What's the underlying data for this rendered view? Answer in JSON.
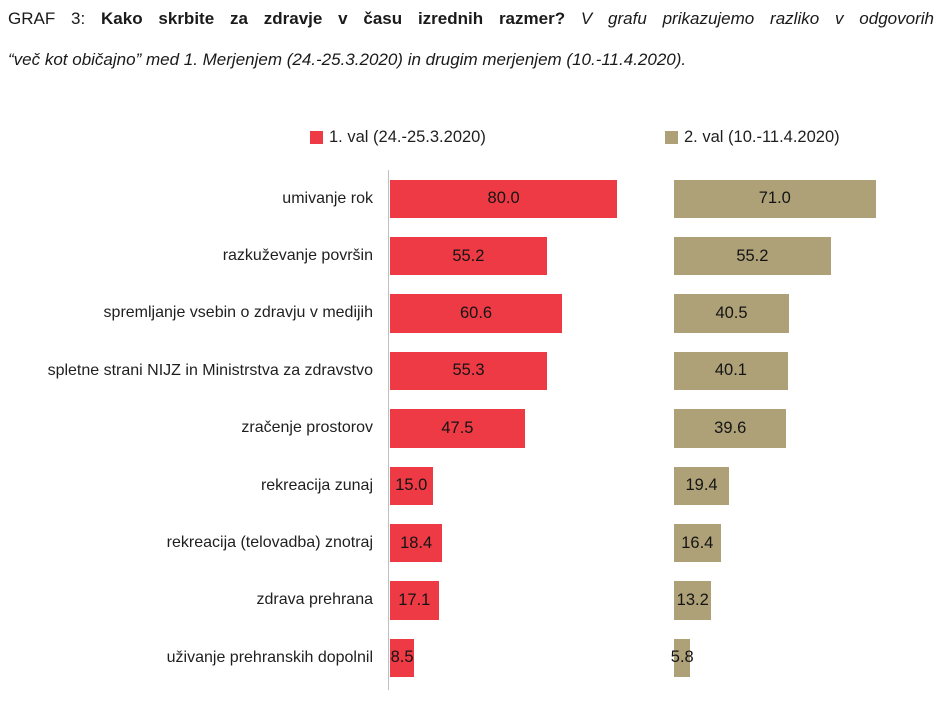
{
  "title": {
    "prefix": "GRAF 3: ",
    "question": "Kako skrbite za zdravje v času izrednih razmer? ",
    "subtitle_line1": "V grafu prikazujemo razliko v odgovorih",
    "subtitle_line2": "“več kot običajno” med 1. Merjenjem (24.-25.3.2020) in drugim merjenjem (10.-11.4.2020)."
  },
  "colors": {
    "axis_line": "#c0c0c0"
  },
  "chart_data": {
    "type": "bar",
    "orientation": "horizontal",
    "title": "Kako skrbite za zdravje v času izrednih razmer?",
    "categories": [
      "umivanje rok",
      "razkuževanje površin",
      "spremljanje vsebin o zdravju v medijih",
      "spletne strani NIJZ in Ministrstva za zdravstvo",
      "zračenje prostorov",
      "rekreacija zunaj",
      "rekreacija (telovadba) znotraj",
      "zdrava prehrana",
      "uživanje prehranskih dopolnil"
    ],
    "series": [
      {
        "name": "1. val (24.-25.3.2020)",
        "color": "#ee3a44",
        "values": [
          80.0,
          55.2,
          60.6,
          55.3,
          47.5,
          15.0,
          18.4,
          17.1,
          8.5
        ]
      },
      {
        "name": "2. val (10.-11.4.2020)",
        "color": "#aea178",
        "values": [
          71.0,
          55.2,
          40.5,
          40.1,
          39.6,
          19.4,
          16.4,
          13.2,
          5.8
        ]
      }
    ],
    "value_labels": true,
    "value_format": "one-decimal",
    "xlim": [
      0,
      100
    ],
    "grid": false,
    "legend_position": "top"
  }
}
